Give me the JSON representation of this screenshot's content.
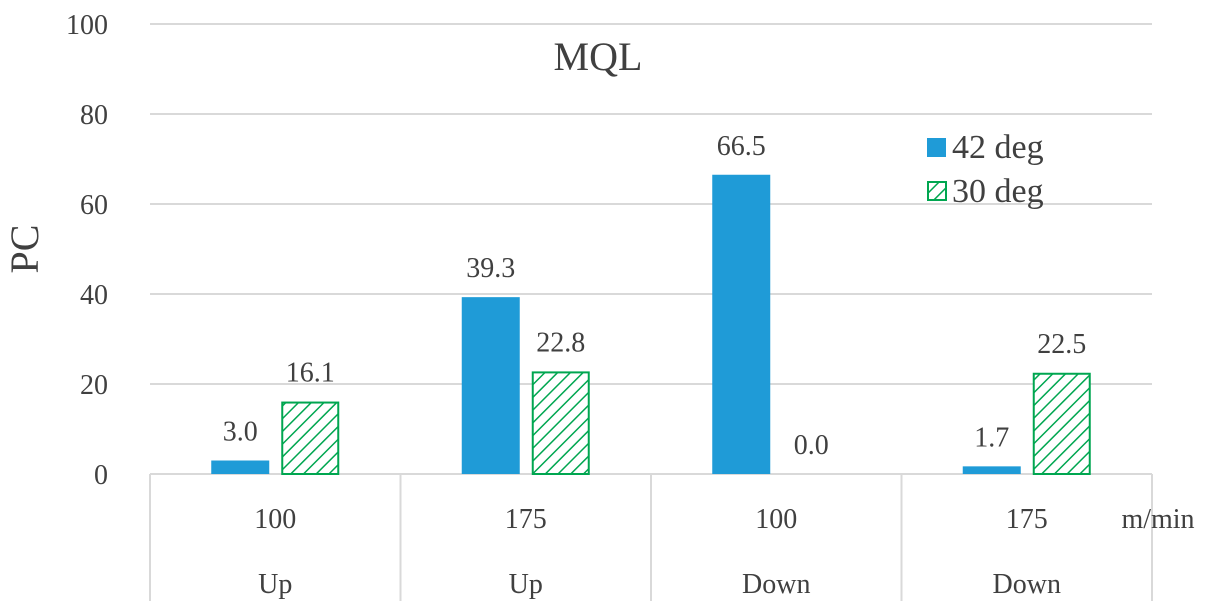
{
  "chart_data": {
    "type": "bar",
    "title": "MQL",
    "xlabel": "m/min",
    "ylabel": "PC",
    "ylim": [
      0,
      100
    ],
    "yticks": [
      0,
      20,
      40,
      60,
      80,
      100
    ],
    "grid": true,
    "legend_position": "top-right",
    "categories": [
      {
        "speed": "100",
        "direction": "Up"
      },
      {
        "speed": "175",
        "direction": "Up"
      },
      {
        "speed": "100",
        "direction": "Down"
      },
      {
        "speed": "175",
        "direction": "Down"
      }
    ],
    "series": [
      {
        "name": "42 deg",
        "values": [
          3.0,
          39.3,
          66.5,
          1.7
        ],
        "labels": [
          "3.0",
          "39.3",
          "66.5",
          "1.7"
        ],
        "color": "#1f9bd7",
        "pattern": "solid"
      },
      {
        "name": "30 deg",
        "values": [
          16.1,
          22.8,
          0.0,
          22.5
        ],
        "labels": [
          "16.1",
          "22.8",
          "0.0",
          "22.5"
        ],
        "color": "#00a650",
        "pattern": "hatch"
      }
    ]
  }
}
